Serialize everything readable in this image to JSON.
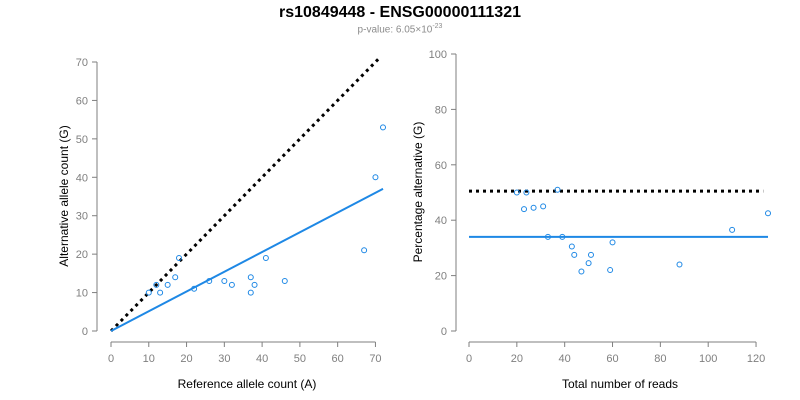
{
  "header": {
    "title": "rs10849448 - ENSG00000111321",
    "pvalue_prefix": "p-value: 6.05×10",
    "pvalue_exponent": "-23"
  },
  "colors": {
    "series": "#1e88e5",
    "reference_line": "#000000",
    "axis": "#7f7f7f"
  },
  "chart_data": [
    {
      "type": "scatter",
      "xlabel": "Reference allele count (A)",
      "ylabel": "Alternative allele count (G)",
      "xlim": [
        0,
        72
      ],
      "ylim": [
        0,
        70
      ],
      "xticks": [
        0,
        10,
        20,
        30,
        40,
        50,
        60,
        70
      ],
      "yticks": [
        0,
        10,
        20,
        30,
        40,
        50,
        60,
        70
      ],
      "grid": false,
      "points": [
        {
          "x": 10,
          "y": 10
        },
        {
          "x": 12,
          "y": 12
        },
        {
          "x": 13,
          "y": 10
        },
        {
          "x": 15,
          "y": 12
        },
        {
          "x": 17,
          "y": 14
        },
        {
          "x": 18,
          "y": 19
        },
        {
          "x": 22,
          "y": 11
        },
        {
          "x": 26,
          "y": 13
        },
        {
          "x": 30,
          "y": 13
        },
        {
          "x": 32,
          "y": 12
        },
        {
          "x": 37,
          "y": 14
        },
        {
          "x": 37,
          "y": 10
        },
        {
          "x": 38,
          "y": 12
        },
        {
          "x": 41,
          "y": 19
        },
        {
          "x": 46,
          "y": 13
        },
        {
          "x": 67,
          "y": 21
        },
        {
          "x": 70,
          "y": 40
        },
        {
          "x": 72,
          "y": 53
        }
      ],
      "fit_line": {
        "x": [
          0,
          72
        ],
        "y": [
          0,
          37
        ]
      },
      "reference_line": {
        "x": [
          0,
          71
        ],
        "y": [
          0,
          71
        ]
      }
    },
    {
      "type": "scatter",
      "xlabel": "Total number of reads",
      "ylabel": "Percentage alternative (G)",
      "xlim": [
        0,
        125
      ],
      "ylim": [
        0,
        100
      ],
      "xticks": [
        0,
        20,
        40,
        60,
        80,
        100,
        120
      ],
      "yticks": [
        0,
        20,
        40,
        60,
        80,
        100
      ],
      "grid": false,
      "points": [
        {
          "x": 20,
          "y": 50
        },
        {
          "x": 23,
          "y": 44
        },
        {
          "x": 24,
          "y": 50
        },
        {
          "x": 27,
          "y": 44.5
        },
        {
          "x": 31,
          "y": 45
        },
        {
          "x": 33,
          "y": 34
        },
        {
          "x": 37,
          "y": 51
        },
        {
          "x": 39,
          "y": 34
        },
        {
          "x": 43,
          "y": 30.5
        },
        {
          "x": 44,
          "y": 27.5
        },
        {
          "x": 47,
          "y": 21.5
        },
        {
          "x": 50,
          "y": 24.5
        },
        {
          "x": 51,
          "y": 27.5
        },
        {
          "x": 59,
          "y": 22
        },
        {
          "x": 60,
          "y": 32
        },
        {
          "x": 88,
          "y": 24
        },
        {
          "x": 110,
          "y": 36.5
        },
        {
          "x": 125,
          "y": 42.5
        }
      ],
      "fit_line": {
        "x": [
          0,
          125
        ],
        "y": [
          34,
          34
        ]
      },
      "reference_line": {
        "x": [
          0,
          123
        ],
        "y": [
          50.5,
          50.5
        ]
      }
    }
  ]
}
